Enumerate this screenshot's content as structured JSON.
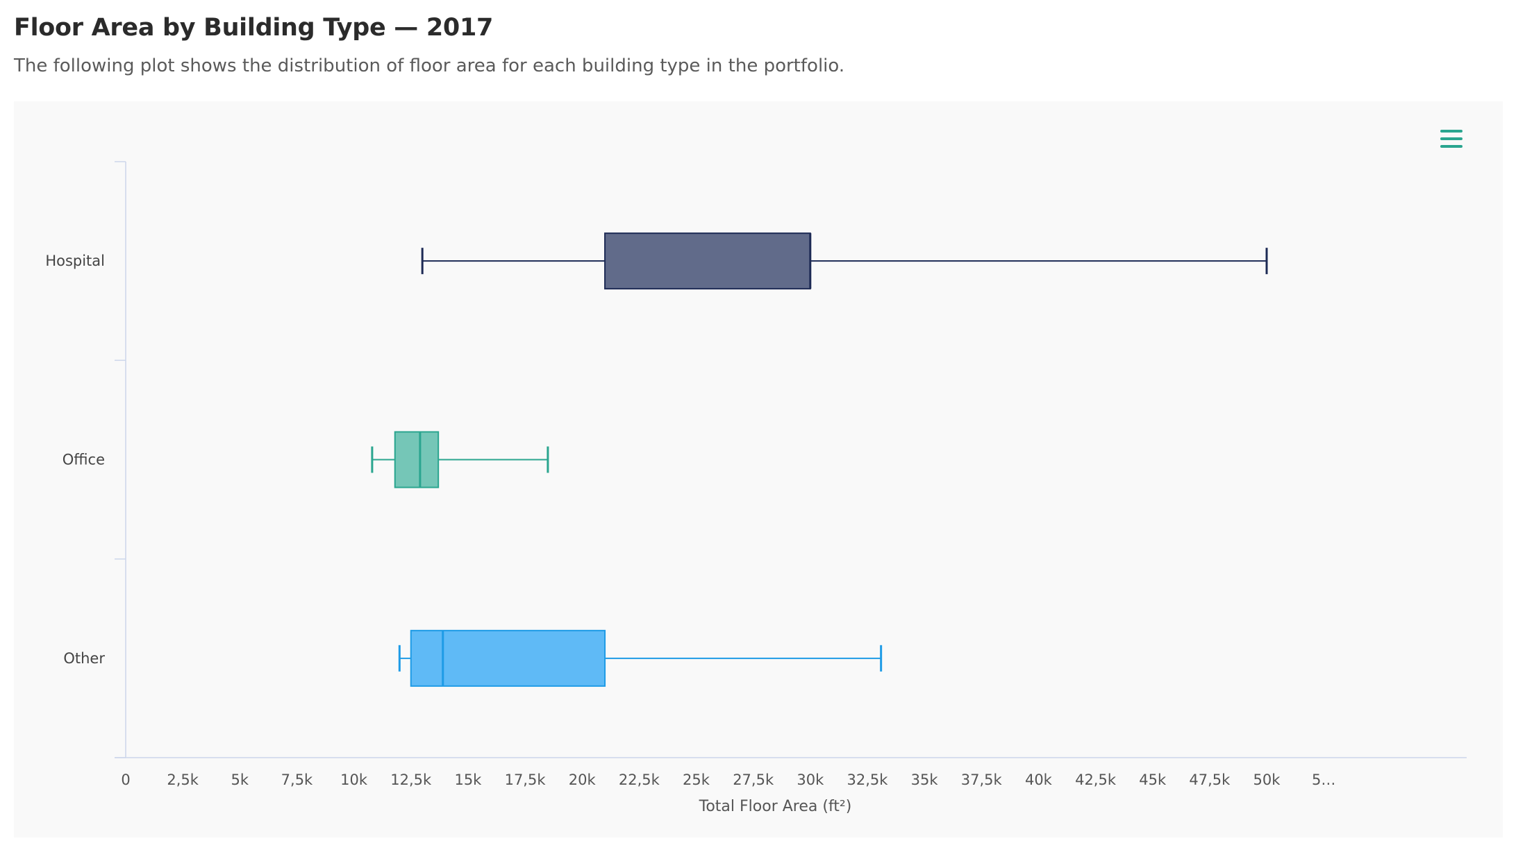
{
  "header": {
    "title": "Floor Area by Building Type — 2017",
    "subtitle": "The following plot shows the distribution of floor area for each building type in the portfolio."
  },
  "menu": {
    "icon": "hamburger-menu-icon",
    "color": "#2aa58f"
  },
  "chart_data": {
    "type": "boxplot",
    "orientation": "horizontal",
    "categories": [
      "Hospital",
      "Office",
      "Other"
    ],
    "series": [
      {
        "category": "Hospital",
        "min": 13000,
        "q1": 21000,
        "median": 30000,
        "q3": 30000,
        "max": 50000,
        "fill": "#616b8a",
        "stroke": "#1d2a55"
      },
      {
        "category": "Office",
        "min": 10800,
        "q1": 11800,
        "median": 12900,
        "q3": 13700,
        "max": 18500,
        "fill": "#75c6b7",
        "stroke": "#2aa58f"
      },
      {
        "category": "Other",
        "min": 12000,
        "q1": 12500,
        "median": 13900,
        "q3": 21000,
        "max": 33100,
        "fill": "#5fbaf6",
        "stroke": "#1e9be6"
      }
    ],
    "x_ticks": [
      "0",
      "2,5k",
      "5k",
      "7,5k",
      "10k",
      "12,5k",
      "15k",
      "17,5k",
      "20k",
      "22,5k",
      "25k",
      "27,5k",
      "30k",
      "32,5k",
      "35k",
      "37,5k",
      "40k",
      "42,5k",
      "45k",
      "47,5k",
      "50k",
      "5…"
    ],
    "x_tick_step": 2500,
    "xlabel": "Total Floor Area (ft²)",
    "ylabel": "",
    "xlim": [
      0,
      52500
    ],
    "grid": false,
    "axis_color": "#ccd6eb"
  }
}
